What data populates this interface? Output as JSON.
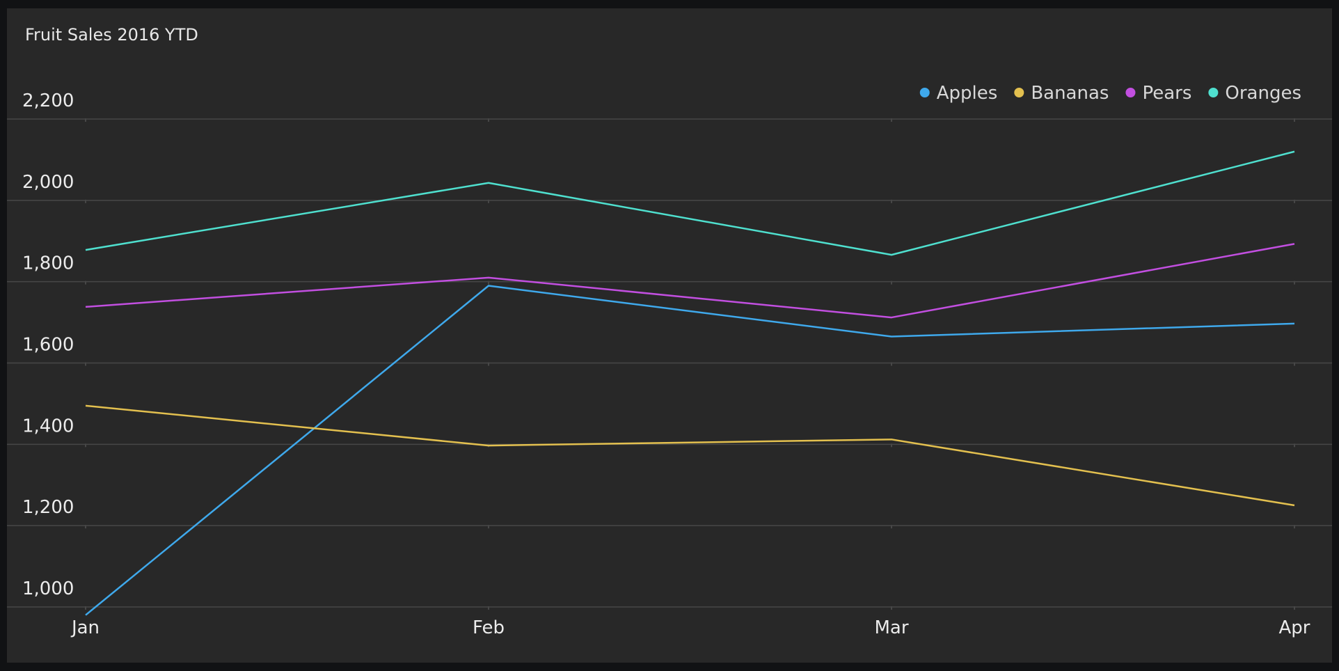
{
  "chart_data": {
    "type": "line",
    "title": "Fruit Sales 2016 YTD",
    "categories": [
      "Jan",
      "Feb",
      "Mar",
      "Apr"
    ],
    "ylim": [
      1000,
      2200
    ],
    "yticks": [
      1000,
      1200,
      1400,
      1600,
      1800,
      2000,
      2200
    ],
    "ytick_labels": [
      "1,000",
      "1,200",
      "1,400",
      "1,600",
      "1,800",
      "2,000",
      "2,200"
    ],
    "grid": true,
    "legend_position": "top-right",
    "xlabel": "",
    "ylabel": "",
    "series": [
      {
        "name": "Apples",
        "color": "#3fa9ec",
        "values": [
          980,
          1790,
          1665,
          1697
        ]
      },
      {
        "name": "Bananas",
        "color": "#e3c04f",
        "values": [
          1495,
          1397,
          1412,
          1250
        ]
      },
      {
        "name": "Pears",
        "color": "#c24fe0",
        "values": [
          1738,
          1810,
          1712,
          1893
        ]
      },
      {
        "name": "Oranges",
        "color": "#4fe0cf",
        "values": [
          1878,
          2043,
          1866,
          2120
        ]
      }
    ]
  },
  "colors": {
    "background": "#282828",
    "page_background": "#111214",
    "gridline": "#474747",
    "text": "#ececec"
  }
}
